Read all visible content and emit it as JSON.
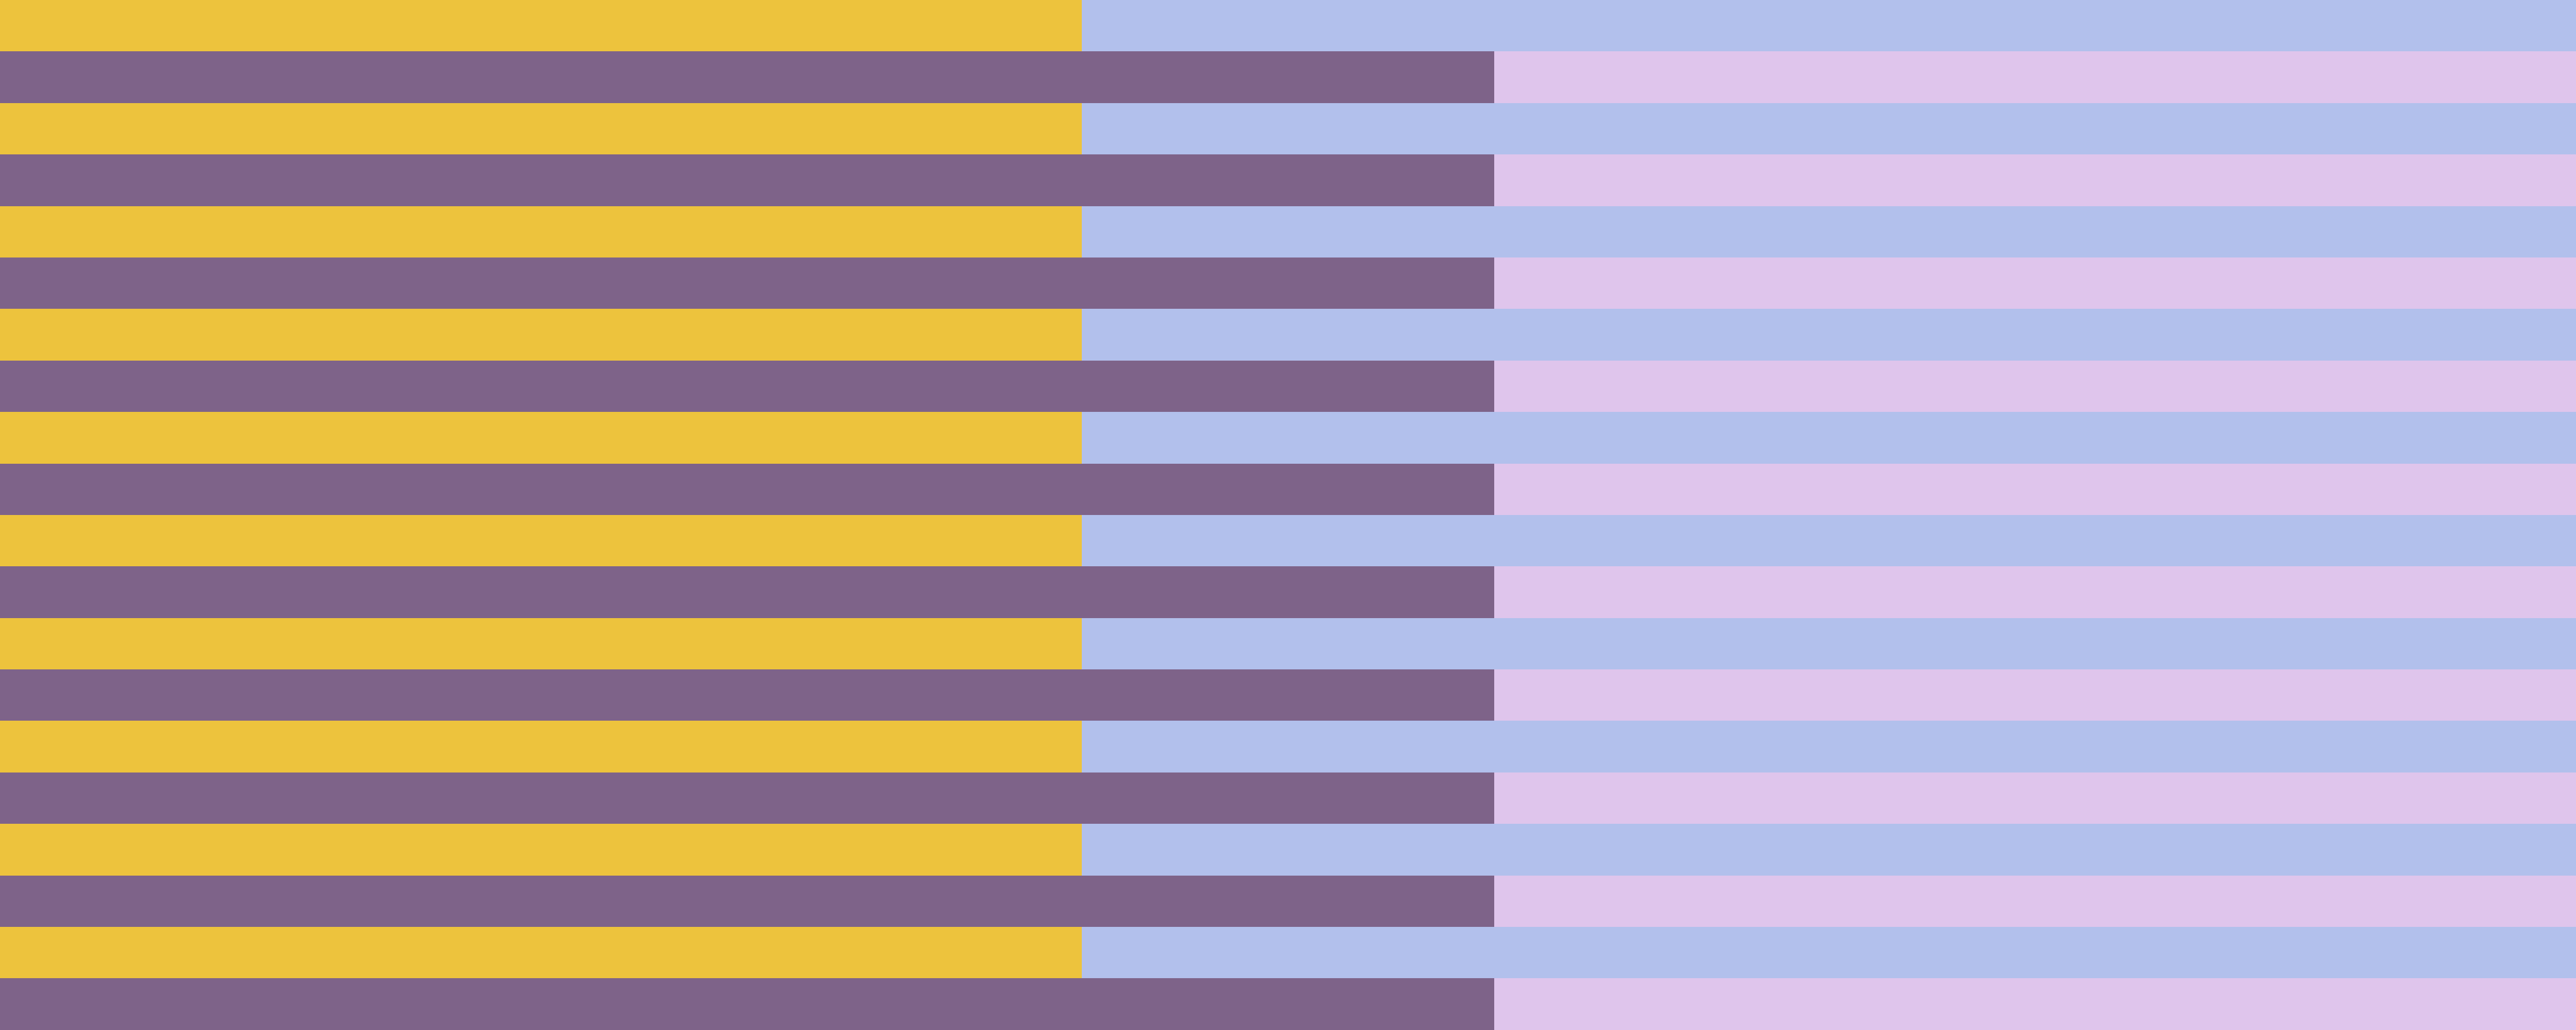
{
  "pattern": {
    "row_count": 20,
    "odd_rows": {
      "left_color": "#edc33d",
      "right_color": "#b2c0ec",
      "left_fraction": 0.42
    },
    "even_rows": {
      "left_color": "#7e6389",
      "right_color": "#dfc5ec",
      "left_fraction": 0.58
    }
  }
}
